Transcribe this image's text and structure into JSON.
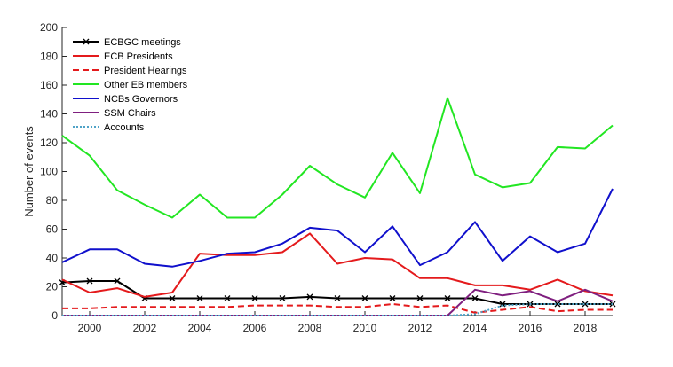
{
  "chart_data": {
    "type": "line",
    "title": "",
    "xlabel": "",
    "ylabel": "Number of events",
    "xlim": [
      1999,
      2019
    ],
    "ylim": [
      0,
      200
    ],
    "x_ticks": [
      2000,
      2002,
      2004,
      2006,
      2008,
      2010,
      2012,
      2014,
      2016,
      2018
    ],
    "y_ticks": [
      0,
      20,
      40,
      60,
      80,
      100,
      120,
      140,
      160,
      180,
      200
    ],
    "grid": false,
    "legend_position": "top-left",
    "x": [
      1999,
      2000,
      2001,
      2002,
      2003,
      2004,
      2005,
      2006,
      2007,
      2008,
      2009,
      2010,
      2011,
      2012,
      2013,
      2014,
      2015,
      2016,
      2017,
      2018,
      2019
    ],
    "series": [
      {
        "name": "ECBGC meetings",
        "color": "#000000",
        "dash": "solid",
        "marker": "x",
        "values": [
          23,
          24,
          24,
          12,
          12,
          12,
          12,
          12,
          12,
          13,
          12,
          12,
          12,
          12,
          12,
          12,
          8,
          8,
          8,
          8,
          8
        ]
      },
      {
        "name": "ECB Presidents",
        "color": "#e41a1c",
        "dash": "solid",
        "marker": "none",
        "values": [
          25,
          16,
          19,
          13,
          16,
          43,
          42,
          42,
          44,
          57,
          36,
          40,
          39,
          26,
          26,
          21,
          21,
          18,
          25,
          17,
          14
        ]
      },
      {
        "name": "President Hearings",
        "color": "#e41a1c",
        "dash": "dashed",
        "marker": "none",
        "values": [
          5,
          5,
          6,
          6,
          6,
          6,
          6,
          7,
          7,
          7,
          6,
          6,
          8,
          6,
          7,
          2,
          4,
          6,
          3,
          4,
          4
        ]
      },
      {
        "name": "Other EB members",
        "color": "#22e622",
        "dash": "solid",
        "marker": "none",
        "values": [
          125,
          111,
          87,
          77,
          68,
          84,
          68,
          68,
          84,
          104,
          91,
          82,
          113,
          85,
          151,
          98,
          89,
          92,
          117,
          116,
          132
        ]
      },
      {
        "name": "NCBs Governors",
        "color": "#1010cc",
        "dash": "solid",
        "marker": "none",
        "values": [
          37,
          46,
          46,
          36,
          34,
          38,
          43,
          44,
          50,
          61,
          59,
          44,
          62,
          35,
          44,
          65,
          38,
          55,
          44,
          50,
          88
        ]
      },
      {
        "name": "SSM Chairs",
        "color": "#7f1f7f",
        "dash": "solid",
        "marker": "none",
        "values": [
          0,
          0,
          0,
          0,
          0,
          0,
          0,
          0,
          0,
          0,
          0,
          0,
          0,
          0,
          0,
          18,
          14,
          17,
          10,
          18,
          10
        ]
      },
      {
        "name": "Accounts",
        "color": "#4fa3c7",
        "dash": "dotted",
        "marker": "none",
        "values": [
          0,
          0,
          0,
          0,
          0,
          0,
          0,
          0,
          0,
          0,
          0,
          0,
          0,
          0,
          0,
          1,
          7,
          8,
          8,
          8,
          8
        ]
      }
    ]
  }
}
